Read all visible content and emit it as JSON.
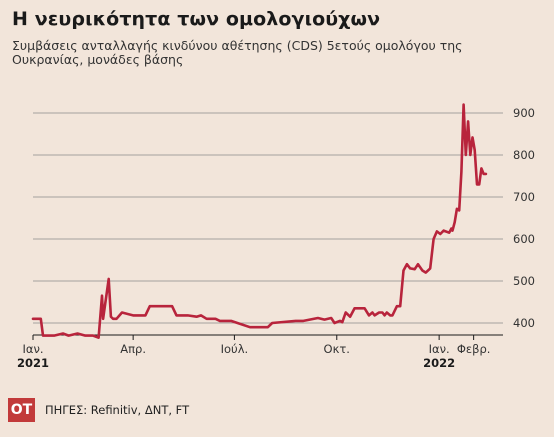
{
  "header": {
    "title": "Η νευρικότητα των ομολογιούχων",
    "subtitle": "Συμβάσεις ανταλλαγής κινδύνου αθέτησης (CDS) 5ετούς ομολόγου της Ουκρανίας, μονάδες βάσης"
  },
  "footer": {
    "logo_text": "OT",
    "sources": "ΠΗΓΕΣ: Refinitiv, ΔΝΤ, FT"
  },
  "chart_data": {
    "type": "line",
    "title": "Η νευρικότητα των ομολογιούχων",
    "ylabel": "",
    "xlabel": "",
    "ylim": [
      360,
      930
    ],
    "xlim": [
      "2021-01-01",
      "2022-02-22"
    ],
    "yticks": [
      400,
      500,
      600,
      700,
      800,
      900
    ],
    "ytick_labels": [
      "400",
      "500",
      "600",
      "700",
      "800",
      "900"
    ],
    "xticks": [
      {
        "date": "2021-01-01",
        "label": "Ιαν.",
        "year": "2021"
      },
      {
        "date": "2021-04-01",
        "label": "Απρ.",
        "year": ""
      },
      {
        "date": "2021-07-01",
        "label": "Ιούλ.",
        "year": ""
      },
      {
        "date": "2021-10-01",
        "label": "Οκτ.",
        "year": ""
      },
      {
        "date": "2022-01-01",
        "label": "Ιαν.",
        "year": "2022"
      },
      {
        "date": "2022-02-01",
        "label": "Φεβρ.",
        "year": ""
      }
    ],
    "grid": true,
    "line_color": "#b8243c",
    "series": [
      {
        "name": "",
        "x": [
          "2021-01-01",
          "2021-01-08",
          "2021-01-10",
          "2021-01-20",
          "2021-01-28",
          "2021-02-02",
          "2021-02-10",
          "2021-02-17",
          "2021-02-24",
          "2021-03-01",
          "2021-03-04",
          "2021-03-05",
          "2021-03-10",
          "2021-03-12",
          "2021-03-14",
          "2021-03-17",
          "2021-03-22",
          "2021-04-01",
          "2021-04-12",
          "2021-04-16",
          "2021-04-28",
          "2021-05-06",
          "2021-05-10",
          "2021-05-20",
          "2021-05-28",
          "2021-06-01",
          "2021-06-06",
          "2021-06-14",
          "2021-06-18",
          "2021-06-28",
          "2021-07-15",
          "2021-07-25",
          "2021-07-31",
          "2021-08-04",
          "2021-08-25",
          "2021-09-01",
          "2021-09-14",
          "2021-09-20",
          "2021-09-26",
          "2021-09-29",
          "2021-10-04",
          "2021-10-06",
          "2021-10-09",
          "2021-10-13",
          "2021-10-17",
          "2021-10-26",
          "2021-10-30",
          "2021-11-02",
          "2021-11-04",
          "2021-11-08",
          "2021-11-11",
          "2021-11-13",
          "2021-11-15",
          "2021-11-18",
          "2021-11-20",
          "2021-11-24",
          "2021-11-27",
          "2021-11-30",
          "2021-12-03",
          "2021-12-06",
          "2021-12-10",
          "2021-12-13",
          "2021-12-17",
          "2021-12-20",
          "2021-12-24",
          "2021-12-27",
          "2021-12-30",
          "2022-01-02",
          "2022-01-05",
          "2022-01-10",
          "2022-01-12",
          "2022-01-13",
          "2022-01-15",
          "2022-01-17",
          "2022-01-19",
          "2022-01-21",
          "2022-01-23",
          "2022-01-25",
          "2022-01-27",
          "2022-01-29",
          "2022-01-31",
          "2022-02-02",
          "2022-02-04",
          "2022-02-06",
          "2022-02-08",
          "2022-02-10",
          "2022-02-12"
        ],
        "values": [
          410,
          410,
          370,
          370,
          375,
          370,
          375,
          370,
          370,
          365,
          465,
          410,
          505,
          415,
          410,
          410,
          425,
          418,
          418,
          440,
          440,
          440,
          418,
          418,
          415,
          418,
          410,
          410,
          405,
          405,
          390,
          390,
          390,
          400,
          405,
          405,
          412,
          408,
          412,
          400,
          405,
          402,
          425,
          415,
          435,
          435,
          418,
          425,
          418,
          425,
          425,
          418,
          425,
          418,
          418,
          440,
          440,
          525,
          540,
          530,
          528,
          540,
          525,
          520,
          530,
          600,
          618,
          612,
          620,
          615,
          625,
          620,
          640,
          672,
          668,
          760,
          920,
          800,
          880,
          800,
          842,
          812,
          730,
          730,
          768,
          755,
          755
        ]
      }
    ]
  }
}
